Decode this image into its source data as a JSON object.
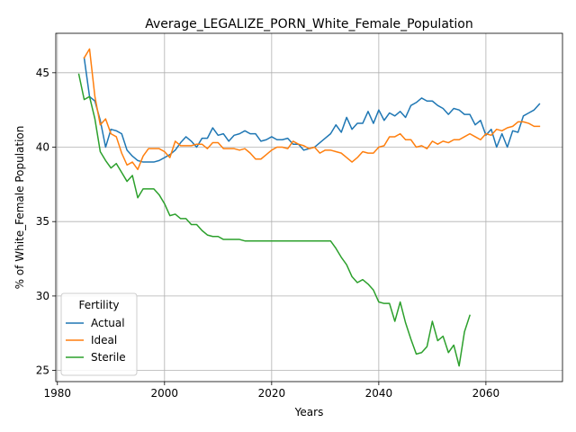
{
  "chart_data": {
    "type": "line",
    "title": "Average_LEGALIZE_PORN_White_Female_Population",
    "xlabel": "Years",
    "ylabel": "% of White_Female Population",
    "xlim": [
      1979.7,
      2074.3
    ],
    "ylim": [
      24.25,
      47.65
    ],
    "xticks": [
      1980,
      2000,
      2020,
      2040,
      2060
    ],
    "yticks": [
      25,
      30,
      35,
      40,
      45
    ],
    "grid": true,
    "legend": {
      "title": "Fertility",
      "position": "lower-left"
    },
    "series": [
      {
        "name": "Actual",
        "color": "#1f77b4",
        "x": [
          1985,
          1986,
          1987,
          1988,
          1989,
          1990,
          1991,
          1992,
          1993,
          1994,
          1995,
          1996,
          1997,
          1998,
          1999,
          2000,
          2001,
          2002,
          2003,
          2004,
          2005,
          2006,
          2007,
          2008,
          2009,
          2010,
          2011,
          2012,
          2013,
          2014,
          2015,
          2016,
          2017,
          2018,
          2019,
          2020,
          2021,
          2022,
          2023,
          2024,
          2025,
          2026,
          2027,
          2028,
          2029,
          2030,
          2031,
          2032,
          2033,
          2034,
          2035,
          2036,
          2037,
          2038,
          2039,
          2040,
          2041,
          2042,
          2043,
          2044,
          2045,
          2046,
          2047,
          2048,
          2049,
          2050,
          2051,
          2052,
          2053,
          2054,
          2055,
          2056,
          2057,
          2058,
          2059,
          2060,
          2061,
          2062,
          2063,
          2064,
          2065,
          2066,
          2067,
          2068,
          2069,
          2070
        ],
        "y": [
          46.0,
          43.4,
          43.1,
          41.8,
          40.0,
          41.2,
          41.1,
          40.9,
          39.8,
          39.4,
          39.1,
          39.0,
          39.0,
          39.0,
          39.1,
          39.3,
          39.5,
          39.8,
          40.3,
          40.7,
          40.4,
          40.0,
          40.6,
          40.6,
          41.3,
          40.8,
          40.9,
          40.4,
          40.8,
          40.9,
          41.1,
          40.9,
          40.9,
          40.4,
          40.5,
          40.7,
          40.5,
          40.5,
          40.6,
          40.2,
          40.2,
          39.8,
          39.9,
          40.0,
          40.3,
          40.6,
          40.9,
          41.5,
          41.0,
          42.0,
          41.2,
          41.6,
          41.6,
          42.4,
          41.6,
          42.5,
          41.8,
          42.3,
          42.1,
          42.4,
          42.0,
          42.8,
          43.0,
          43.3,
          43.1,
          43.1,
          42.8,
          42.6,
          42.2,
          42.6,
          42.5,
          42.2,
          42.2,
          41.5,
          41.8,
          40.8,
          41.2,
          40.0,
          40.9,
          40.0,
          41.1,
          41.0,
          42.1,
          42.3,
          42.5,
          42.9
        ]
      },
      {
        "name": "Ideal",
        "color": "#ff7f0e",
        "x": [
          1985,
          1986,
          1987,
          1988,
          1989,
          1990,
          1991,
          1992,
          1993,
          1994,
          1995,
          1996,
          1997,
          1998,
          1999,
          2000,
          2001,
          2002,
          2003,
          2004,
          2005,
          2006,
          2007,
          2008,
          2009,
          2010,
          2011,
          2012,
          2013,
          2014,
          2015,
          2016,
          2017,
          2018,
          2019,
          2020,
          2021,
          2022,
          2023,
          2024,
          2025,
          2026,
          2027,
          2028,
          2029,
          2030,
          2031,
          2032,
          2033,
          2034,
          2035,
          2036,
          2037,
          2038,
          2039,
          2040,
          2041,
          2042,
          2043,
          2044,
          2045,
          2046,
          2047,
          2048,
          2049,
          2050,
          2051,
          2052,
          2053,
          2054,
          2055,
          2056,
          2057,
          2058,
          2059,
          2060,
          2061,
          2062,
          2063,
          2064,
          2065,
          2066,
          2067,
          2068,
          2069,
          2070
        ],
        "y": [
          46.0,
          46.6,
          43.4,
          41.5,
          41.9,
          40.9,
          40.7,
          39.6,
          38.8,
          39.0,
          38.5,
          39.4,
          39.9,
          39.9,
          39.9,
          39.7,
          39.3,
          40.4,
          40.1,
          40.1,
          40.1,
          40.2,
          40.2,
          39.9,
          40.3,
          40.3,
          39.9,
          39.9,
          39.9,
          39.8,
          39.9,
          39.6,
          39.2,
          39.2,
          39.5,
          39.8,
          40.0,
          40.0,
          39.9,
          40.4,
          40.2,
          40.1,
          39.9,
          40.0,
          39.6,
          39.8,
          39.8,
          39.7,
          39.6,
          39.3,
          39.0,
          39.3,
          39.7,
          39.6,
          39.6,
          40.0,
          40.1,
          40.7,
          40.7,
          40.9,
          40.5,
          40.5,
          40.0,
          40.1,
          39.9,
          40.4,
          40.2,
          40.4,
          40.3,
          40.5,
          40.5,
          40.7,
          40.9,
          40.7,
          40.5,
          40.9,
          40.8,
          41.2,
          41.1,
          41.3,
          41.4,
          41.7,
          41.7,
          41.6,
          41.4,
          41.4
        ]
      },
      {
        "name": "Sterile",
        "color": "#2ca02c",
        "x": [
          1984,
          1985,
          1986,
          1987,
          1988,
          1989,
          1990,
          1991,
          1992,
          1993,
          1994,
          1995,
          1996,
          1997,
          1998,
          1999,
          2000,
          2001,
          2002,
          2003,
          2004,
          2005,
          2006,
          2007,
          2008,
          2009,
          2010,
          2011,
          2012,
          2013,
          2014,
          2015,
          2016,
          2017,
          2018,
          2019,
          2020,
          2021,
          2022,
          2023,
          2024,
          2025,
          2026,
          2027,
          2028,
          2029,
          2030,
          2031,
          2032,
          2033,
          2034,
          2035,
          2036,
          2037,
          2038,
          2039,
          2040,
          2041,
          2042,
          2043,
          2044,
          2045,
          2046,
          2047,
          2048,
          2049,
          2050,
          2051,
          2052,
          2053,
          2054,
          2055,
          2056,
          2057
        ],
        "y": [
          44.9,
          43.2,
          43.4,
          41.9,
          39.7,
          39.1,
          38.6,
          38.9,
          38.3,
          37.7,
          38.1,
          36.6,
          37.2,
          37.2,
          37.2,
          36.8,
          36.2,
          35.4,
          35.5,
          35.2,
          35.2,
          34.8,
          34.8,
          34.4,
          34.1,
          34.0,
          34.0,
          33.8,
          33.8,
          33.8,
          33.8,
          33.7,
          33.7,
          33.7,
          33.7,
          33.7,
          33.7,
          33.7,
          33.7,
          33.7,
          33.7,
          33.7,
          33.7,
          33.7,
          33.7,
          33.7,
          33.7,
          33.7,
          33.2,
          32.6,
          32.1,
          31.3,
          30.9,
          31.1,
          30.8,
          30.4,
          29.6,
          29.5,
          29.5,
          28.3,
          29.6,
          28.2,
          27.1,
          26.1,
          26.2,
          26.6,
          28.3,
          27.0,
          27.3,
          26.2,
          26.7,
          25.3,
          27.6,
          28.7
        ]
      }
    ]
  }
}
